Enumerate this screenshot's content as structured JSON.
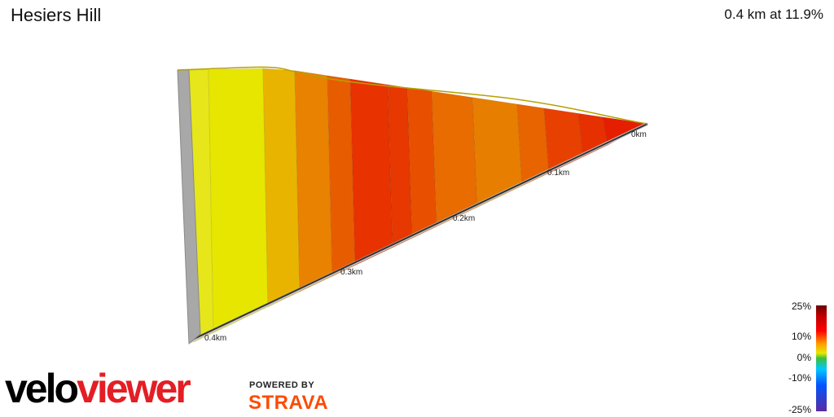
{
  "segment": {
    "name": "Hesiers Hill",
    "summary": "0.4 km at 11.9%"
  },
  "distance_labels": [
    "0km",
    "0.1km",
    "0.2km",
    "0.3km",
    "0.4km"
  ],
  "legend": {
    "labels": [
      "25%",
      "10%",
      "0%",
      "-10%",
      "-25%"
    ]
  },
  "branding": {
    "logo_part1": "velo",
    "logo_part2": "viewer",
    "powered_by": "POWERED BY",
    "strava": "STRAVA"
  },
  "colors": {
    "accent_red": "#e31e24",
    "strava_orange": "#fc4c02"
  },
  "profile_segments": [
    "#e6e61a",
    "#e6e600",
    "#e8b400",
    "#e88200",
    "#e85c00",
    "#e83200",
    "#e63800",
    "#e85000",
    "#e86c00",
    "#e87e00",
    "#e86400",
    "#e84000",
    "#e63000",
    "#e61e00"
  ]
}
